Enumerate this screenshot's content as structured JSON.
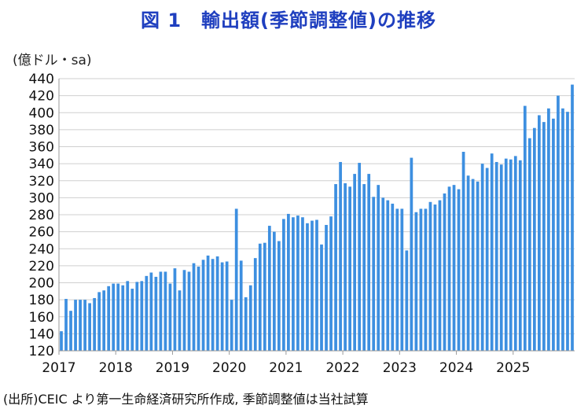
{
  "title": "図 1　輸出額(季節調整値)の推移",
  "unit_label": "(億ドル・sa)",
  "source_note": "(出所)CEIC より第一生命経済研究所作成, 季節調整値は当社試算",
  "colors": {
    "bar": "#3d8fe0",
    "grid": "#cfcfcf",
    "axis": "#9a9a9a",
    "title": "#1f3fbf"
  },
  "chart_data": {
    "type": "bar",
    "title": "図 1　輸出額(季節調整値)の推移",
    "ylabel": "(億ドル・sa)",
    "xlabel": "",
    "ylim": [
      120,
      440
    ],
    "ytick_step": 20,
    "grid": true,
    "x_tick_labels": [
      "2017",
      "2018",
      "2019",
      "2020",
      "2021",
      "2022",
      "2023",
      "2024",
      "2025"
    ],
    "months_per_year": 12,
    "values": [
      143,
      181,
      167,
      180,
      180,
      180,
      176,
      182,
      189,
      191,
      196,
      199,
      199,
      197,
      202,
      193,
      201,
      202,
      208,
      212,
      207,
      213,
      213,
      199,
      217,
      191,
      215,
      213,
      223,
      219,
      227,
      232,
      228,
      231,
      224,
      225,
      180,
      287,
      226,
      183,
      197,
      229,
      246,
      247,
      267,
      260,
      249,
      275,
      281,
      277,
      279,
      277,
      270,
      273,
      274,
      245,
      268,
      278,
      316,
      342,
      317,
      313,
      328,
      341,
      316,
      328,
      301,
      315,
      300,
      297,
      293,
      287,
      287,
      238,
      347,
      283,
      287,
      287,
      295,
      292,
      297,
      305,
      313,
      315,
      310,
      354,
      326,
      322,
      319,
      340,
      335,
      352,
      342,
      339,
      346,
      345,
      349,
      344,
      408,
      370,
      382,
      397,
      389,
      405,
      393,
      420,
      405,
      401,
      433
    ]
  }
}
